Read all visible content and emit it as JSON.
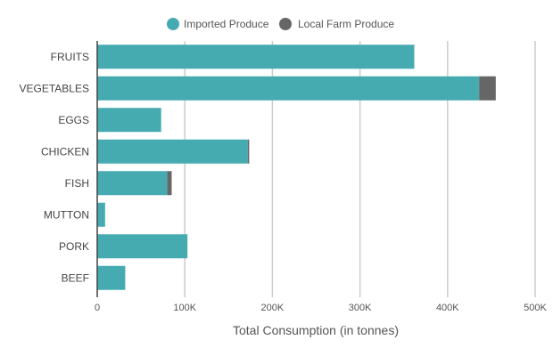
{
  "chart_data": {
    "type": "bar",
    "orientation": "horizontal",
    "stacked": true,
    "title": "",
    "xlabel": "Total Consumption (in tonnes)",
    "ylabel": "",
    "categories": [
      "FRUITS",
      "VEGETABLES",
      "EGGS",
      "CHICKEN",
      "FISH",
      "MUTTON",
      "PORK",
      "BEEF"
    ],
    "series": [
      {
        "name": "Imported Produce",
        "color": "#45abb1",
        "values": [
          362000,
          436000,
          73000,
          172000,
          80000,
          9000,
          103000,
          32000
        ]
      },
      {
        "name": "Local Farm Produce",
        "color": "#666666",
        "values": [
          0,
          19000,
          0,
          1500,
          5000,
          0,
          0,
          0
        ]
      }
    ],
    "xlim": [
      0,
      500000
    ],
    "xticks": [
      {
        "value": 0,
        "label": "0"
      },
      {
        "value": 100000,
        "label": "100K"
      },
      {
        "value": 200000,
        "label": "200K"
      },
      {
        "value": 300000,
        "label": "300K"
      },
      {
        "value": 400000,
        "label": "400K"
      },
      {
        "value": 500000,
        "label": "500K"
      }
    ],
    "grid": true,
    "legend_position": "top-center"
  }
}
